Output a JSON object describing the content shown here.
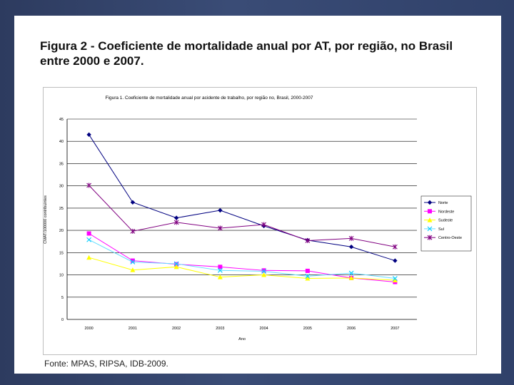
{
  "slide": {
    "title": "Figura 2 - Coeficiente de mortalidade anual por AT, por região, no Brasil entre 2000 e 2007.",
    "source": "Fonte: MPAS, RIPSA, IDB-2009."
  },
  "chart_data": {
    "type": "line",
    "title": "Figura 1. Coeficiente de mortalidade anual por acidente de trabalho, por região no, Brasil, 2000-2007",
    "xlabel": "Ano",
    "ylabel": "CMAT/100000 contribuintes",
    "ylim": [
      0,
      45
    ],
    "yticks": [
      "0",
      "5",
      "10",
      "15",
      "20",
      "25",
      "30",
      "35",
      "40",
      "45"
    ],
    "categories": [
      "2000",
      "2001",
      "2002",
      "2003",
      "2004",
      "2005",
      "2006",
      "2007"
    ],
    "legend_position": "right",
    "series": [
      {
        "name": "Norte",
        "values": [
          41.5,
          26.3,
          22.8,
          24.5,
          21.0,
          17.8,
          16.3,
          13.2
        ],
        "color": "#000080",
        "marker": "diamond"
      },
      {
        "name": "Nordeste",
        "values": [
          19.3,
          13.2,
          12.4,
          11.8,
          11.0,
          10.9,
          9.3,
          8.4
        ],
        "color": "#ff00ff",
        "marker": "square"
      },
      {
        "name": "Sudeste",
        "values": [
          13.9,
          11.1,
          11.8,
          9.5,
          10.0,
          9.2,
          9.3,
          8.8
        ],
        "color": "#ffff00",
        "marker": "triangle"
      },
      {
        "name": "Sul",
        "values": [
          17.9,
          12.9,
          12.5,
          11.0,
          10.8,
          9.7,
          10.4,
          9.2
        ],
        "color": "#00ccff",
        "marker": "x"
      },
      {
        "name": "Centro-Oeste",
        "values": [
          30.1,
          19.8,
          21.8,
          20.5,
          21.3,
          17.7,
          18.2,
          16.3
        ],
        "color": "#800080",
        "marker": "star"
      }
    ]
  }
}
